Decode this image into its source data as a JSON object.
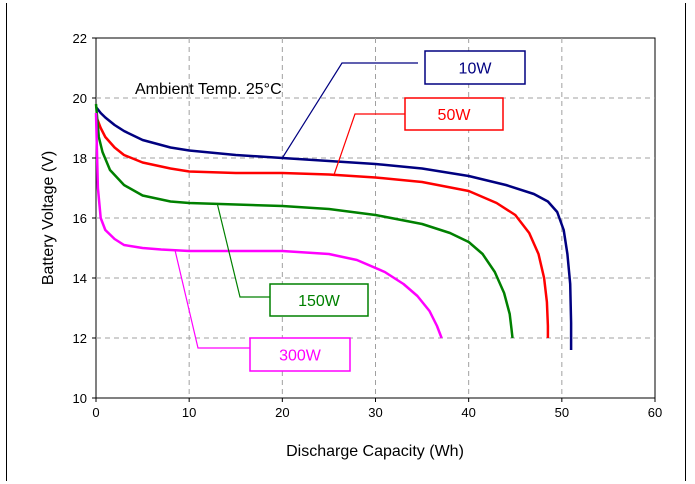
{
  "chart_data": {
    "type": "line",
    "title": "",
    "annotation": "Ambient Temp. 25°C",
    "xlabel": "Discharge Capacity (Wh)",
    "ylabel": "Battery Voltage (V)",
    "xlim": [
      0,
      60
    ],
    "ylim": [
      10,
      22
    ],
    "xticks": [
      0,
      10,
      20,
      30,
      40,
      50,
      60
    ],
    "yticks": [
      10,
      12,
      14,
      16,
      18,
      20,
      22
    ],
    "grid": true,
    "series": [
      {
        "name": "10W",
        "color": "#000080",
        "label_box_color": "#000080",
        "label_value_at": [
          20,
          18.0
        ],
        "x": [
          0,
          0.5,
          1,
          2,
          3,
          5,
          8,
          10,
          15,
          20,
          25,
          30,
          35,
          40,
          44,
          47,
          48.5,
          49.5,
          50.2,
          50.6,
          50.9,
          51.0,
          51.0
        ],
        "y": [
          19.7,
          19.5,
          19.35,
          19.1,
          18.9,
          18.6,
          18.35,
          18.25,
          18.1,
          18.0,
          17.9,
          17.8,
          17.65,
          17.4,
          17.1,
          16.8,
          16.55,
          16.2,
          15.6,
          14.8,
          13.8,
          12.5,
          11.6
        ]
      },
      {
        "name": "50W",
        "color": "#ff0000",
        "label_box_color": "#ff0000",
        "label_value_at": [
          25.5,
          17.4
        ],
        "x": [
          0,
          0.5,
          1,
          2,
          3,
          5,
          8,
          10,
          15,
          20,
          25,
          30,
          35,
          40,
          43,
          45,
          46.5,
          47.5,
          48.1,
          48.4,
          48.5,
          48.5
        ],
        "y": [
          19.4,
          19.0,
          18.7,
          18.35,
          18.1,
          17.85,
          17.65,
          17.55,
          17.5,
          17.5,
          17.45,
          17.35,
          17.2,
          16.9,
          16.5,
          16.1,
          15.5,
          14.8,
          14.0,
          13.2,
          12.4,
          12.0
        ]
      },
      {
        "name": "150W",
        "color": "#008000",
        "label_box_color": "#008000",
        "label_value_at": [
          13,
          16.5
        ],
        "x": [
          0,
          0.3,
          0.7,
          1.5,
          3,
          5,
          8,
          10,
          15,
          20,
          25,
          30,
          35,
          38,
          40,
          41.5,
          42.8,
          43.8,
          44.4,
          44.6,
          44.7
        ],
        "y": [
          19.8,
          18.7,
          18.2,
          17.6,
          17.1,
          16.75,
          16.55,
          16.5,
          16.45,
          16.4,
          16.3,
          16.1,
          15.8,
          15.5,
          15.2,
          14.8,
          14.2,
          13.5,
          12.8,
          12.3,
          12.0
        ]
      },
      {
        "name": "300W",
        "color": "#ff00ff",
        "label_box_color": "#ff00ff",
        "label_value_at": [
          8.5,
          14.9
        ],
        "x": [
          0,
          0.2,
          0.5,
          1,
          2,
          3,
          5,
          7,
          10,
          15,
          20,
          25,
          28,
          31,
          33,
          34.5,
          35.8,
          36.6,
          37.1
        ],
        "y": [
          19.5,
          17.0,
          16.0,
          15.6,
          15.3,
          15.1,
          15.0,
          14.95,
          14.9,
          14.9,
          14.9,
          14.8,
          14.6,
          14.2,
          13.8,
          13.4,
          12.9,
          12.4,
          12.0
        ]
      }
    ]
  }
}
